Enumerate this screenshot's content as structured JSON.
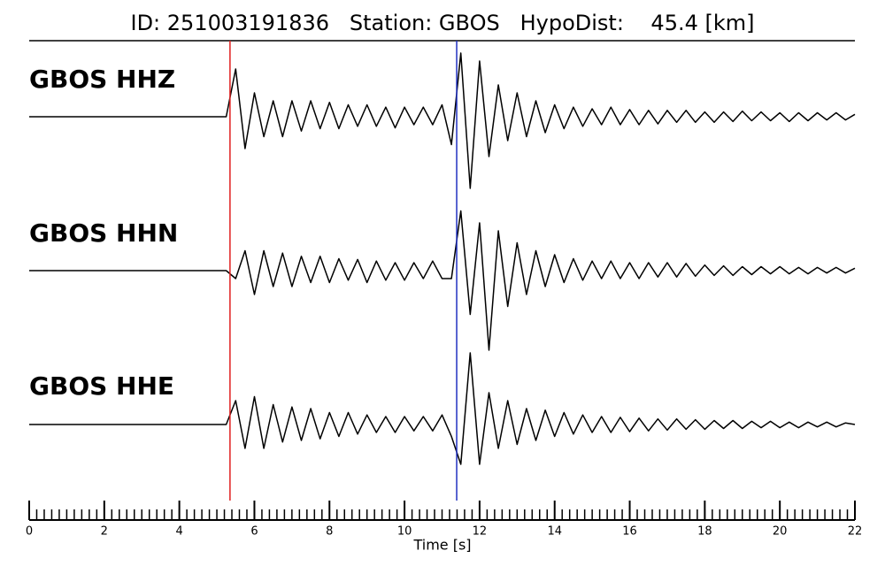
{
  "chart_data": {
    "type": "seismogram",
    "title": "ID: 251003191836   Station: GBOS   HypoDist:    45.4 [km]",
    "xlabel": "Time [s]",
    "xlim": [
      0,
      22
    ],
    "xticks": [
      0,
      2,
      4,
      6,
      8,
      10,
      12,
      14,
      16,
      18,
      20,
      22
    ],
    "xminorticks": [
      0,
      0.2,
      0.4,
      0.6,
      0.8,
      1,
      1.2,
      1.4,
      1.6,
      1.8,
      2,
      2.2,
      2.4,
      2.6,
      2.8,
      3,
      3.2,
      3.4,
      3.6,
      3.8,
      4,
      4.2,
      4.4,
      4.6,
      4.8,
      5,
      5.2,
      5.4,
      5.6,
      5.8,
      6,
      6.2,
      6.4,
      6.6,
      6.8,
      7,
      7.2,
      7.4,
      7.6,
      7.8,
      8,
      8.2,
      8.4,
      8.6,
      8.8,
      9,
      9.2,
      9.4,
      9.6,
      9.8,
      10,
      10.2,
      10.4,
      10.6,
      10.8,
      11,
      11.2,
      11.4,
      11.6,
      11.8,
      12,
      12.2,
      12.4,
      12.6,
      12.8,
      13,
      13.2,
      13.4,
      13.6,
      13.8,
      14,
      14.2,
      14.4,
      14.6,
      14.8,
      15,
      15.2,
      15.4,
      15.6,
      15.8,
      16,
      16.2,
      16.4,
      16.6,
      16.8,
      17,
      17.2,
      17.4,
      17.6,
      17.8,
      18,
      18.2,
      18.4,
      18.6,
      18.8,
      19,
      19.2,
      19.4,
      19.6,
      19.8,
      20,
      20.2,
      20.4,
      20.6,
      20.8,
      21,
      21.2,
      21.4,
      21.6,
      21.8,
      22
    ],
    "picks": [
      {
        "color": "#e02020",
        "x": 5.35
      },
      {
        "color": "#2030c0",
        "x": 11.39
      }
    ],
    "label_color": "#4a9a0a",
    "x": [
      0,
      0.25,
      0.5,
      0.75,
      1,
      1.25,
      1.5,
      1.75,
      2,
      2.25,
      2.5,
      2.75,
      3,
      3.25,
      3.5,
      3.75,
      4,
      4.25,
      4.5,
      4.75,
      5,
      5.25,
      5.5,
      5.75,
      6,
      6.25,
      6.5,
      6.75,
      7,
      7.25,
      7.5,
      7.75,
      8,
      8.25,
      8.5,
      8.75,
      9,
      9.25,
      9.5,
      9.75,
      10,
      10.25,
      10.5,
      10.75,
      11,
      11.25,
      11.5,
      11.75,
      12,
      12.25,
      12.5,
      12.75,
      13,
      13.25,
      13.5,
      13.75,
      14,
      14.25,
      14.5,
      14.75,
      15,
      15.25,
      15.5,
      15.75,
      16,
      16.25,
      16.5,
      16.75,
      17,
      17.25,
      17.5,
      17.75,
      18,
      18.25,
      18.5,
      18.75,
      19,
      19.25,
      19.5,
      19.75,
      20,
      20.25,
      20.5,
      20.75,
      21,
      21.25,
      21.5,
      21.75,
      22
    ],
    "series": [
      {
        "name": "GBOS HHZ",
        "color": "#000000",
        "values": [
          0,
          0,
          0,
          0,
          0,
          0,
          0,
          0,
          0,
          0,
          0,
          0,
          0,
          0,
          0,
          0,
          0,
          0,
          0,
          0,
          0,
          0,
          0.6,
          -0.4,
          0.3,
          -0.25,
          0.2,
          -0.25,
          0.2,
          -0.18,
          0.2,
          -0.15,
          0.18,
          -0.15,
          0.15,
          -0.12,
          0.15,
          -0.12,
          0.12,
          -0.14,
          0.12,
          -0.1,
          0.12,
          -0.1,
          0.15,
          -0.35,
          0.8,
          -0.9,
          0.7,
          -0.5,
          0.4,
          -0.3,
          0.3,
          -0.25,
          0.2,
          -0.2,
          0.15,
          -0.15,
          0.12,
          -0.12,
          0.1,
          -0.1,
          0.12,
          -0.1,
          0.09,
          -0.1,
          0.08,
          -0.09,
          0.08,
          -0.07,
          0.08,
          -0.07,
          0.06,
          -0.07,
          0.06,
          -0.06,
          0.07,
          -0.05,
          0.06,
          -0.05,
          0.05,
          -0.06,
          0.05,
          -0.05,
          0.05,
          -0.04,
          0.05,
          -0.04,
          0.03
        ]
      },
      {
        "name": "GBOS HHN",
        "color": "#000000",
        "values": [
          0,
          0,
          0,
          0,
          0,
          0,
          0,
          0,
          0,
          0,
          0,
          0,
          0,
          0,
          0,
          0,
          0,
          0,
          0,
          0,
          0,
          0,
          -0.1,
          0.25,
          -0.3,
          0.25,
          -0.2,
          0.22,
          -0.2,
          0.18,
          -0.15,
          0.18,
          -0.15,
          0.15,
          -0.12,
          0.14,
          -0.15,
          0.12,
          -0.12,
          0.1,
          -0.12,
          0.1,
          -0.1,
          0.12,
          -0.1,
          -0.1,
          0.75,
          -0.55,
          0.6,
          -1.0,
          0.5,
          -0.45,
          0.35,
          -0.3,
          0.25,
          -0.2,
          0.2,
          -0.15,
          0.15,
          -0.12,
          0.12,
          -0.1,
          0.12,
          -0.1,
          0.1,
          -0.1,
          0.1,
          -0.08,
          0.1,
          -0.08,
          0.09,
          -0.07,
          0.07,
          -0.06,
          0.06,
          -0.06,
          0.05,
          -0.05,
          0.05,
          -0.04,
          0.05,
          -0.04,
          0.04,
          -0.04,
          0.04,
          -0.03,
          0.04,
          -0.03,
          0.03
        ]
      },
      {
        "name": "GBOS HHE",
        "color": "#000000",
        "values": [
          0,
          0,
          0,
          0,
          0,
          0,
          0,
          0,
          0,
          0,
          0,
          0,
          0,
          0,
          0,
          0,
          0,
          0,
          0,
          0,
          0,
          0,
          0.3,
          -0.3,
          0.35,
          -0.3,
          0.25,
          -0.22,
          0.22,
          -0.2,
          0.2,
          -0.18,
          0.15,
          -0.15,
          0.15,
          -0.12,
          0.12,
          -0.1,
          0.1,
          -0.1,
          0.1,
          -0.08,
          0.1,
          -0.08,
          0.12,
          -0.15,
          -0.5,
          0.9,
          -0.5,
          0.4,
          -0.3,
          0.3,
          -0.25,
          0.2,
          -0.2,
          0.18,
          -0.15,
          0.15,
          -0.12,
          0.12,
          -0.1,
          0.1,
          -0.1,
          0.09,
          -0.09,
          0.08,
          -0.08,
          0.07,
          -0.07,
          0.07,
          -0.06,
          0.06,
          -0.06,
          0.05,
          -0.05,
          0.05,
          -0.05,
          0.04,
          -0.04,
          0.04,
          -0.04,
          0.03,
          -0.04,
          0.03,
          -0.03,
          0.03,
          -0.03,
          0.02,
          0
        ]
      }
    ]
  }
}
